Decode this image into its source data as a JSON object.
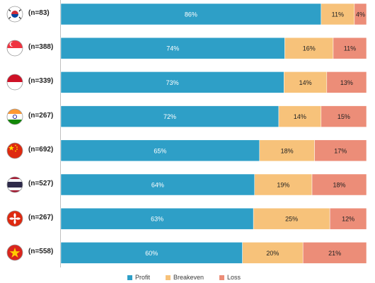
{
  "chart_data": {
    "type": "bar",
    "orientation": "horizontal",
    "stacked": true,
    "percent_stacked": true,
    "categories": [
      "(n=83)",
      "(n=388)",
      "(n=339)",
      "(n=267)",
      "(n=692)",
      "(n=527)",
      "(n=267)",
      "(n=558)"
    ],
    "category_flags": [
      "south-korea-flag-icon",
      "singapore-flag-icon",
      "indonesia-flag-icon",
      "india-flag-icon",
      "china-flag-icon",
      "thailand-flag-icon",
      "hong-kong-flag-icon",
      "vietnam-flag-icon"
    ],
    "series": [
      {
        "name": "Profit",
        "color": "#2e9fc7",
        "values": [
          86,
          74,
          73,
          72,
          65,
          64,
          63,
          60
        ]
      },
      {
        "name": "Breakeven",
        "color": "#f7c27a",
        "values": [
          11,
          16,
          14,
          14,
          18,
          19,
          25,
          20
        ]
      },
      {
        "name": "Loss",
        "color": "#ec8d78",
        "values": [
          4,
          11,
          13,
          15,
          17,
          18,
          12,
          21
        ]
      }
    ],
    "value_labels": [
      [
        "86%",
        "11%",
        "4%"
      ],
      [
        "74%",
        "16%",
        "11%"
      ],
      [
        "73%",
        "14%",
        "13%"
      ],
      [
        "72%",
        "14%",
        "15%"
      ],
      [
        "65%",
        "18%",
        "17%"
      ],
      [
        "64%",
        "19%",
        "18%"
      ],
      [
        "63%",
        "25%",
        "12%"
      ],
      [
        "60%",
        "20%",
        "21%"
      ]
    ],
    "legend": [
      "Profit",
      "Breakeven",
      "Loss"
    ],
    "legend_position": "bottom",
    "title": "",
    "xlabel": "",
    "ylabel": "",
    "grid": false
  }
}
